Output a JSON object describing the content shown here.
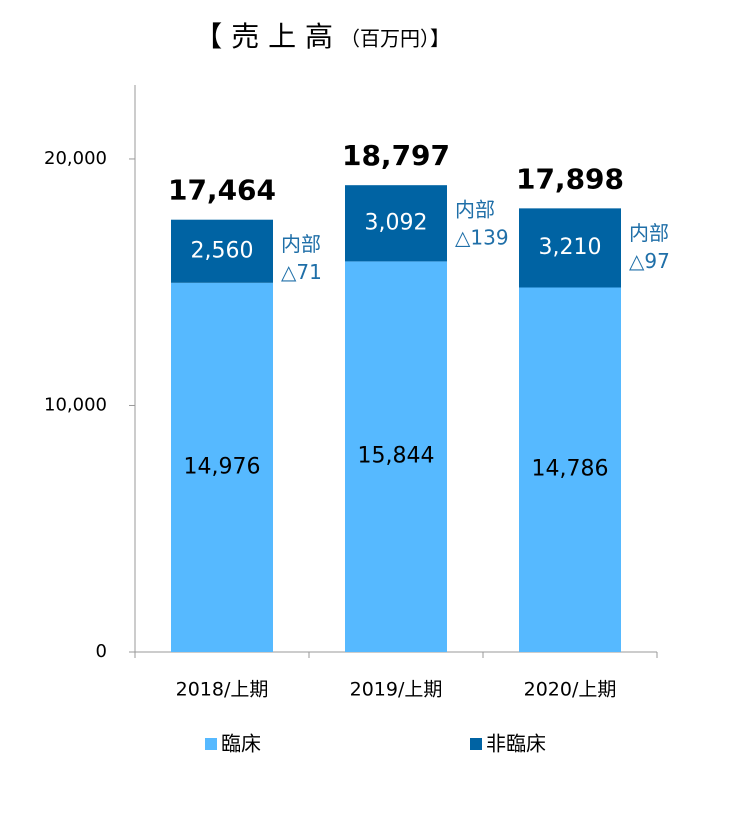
{
  "chart_data": {
    "type": "stacked_bar",
    "title": "【 売 上 高",
    "subtitle": "（百万円）】",
    "categories": [
      "2018/上期",
      "2019/上期",
      "2020/上期"
    ],
    "series": [
      {
        "name": "臨床",
        "color": "#56b9ff",
        "values": [
          14976,
          15844,
          14786
        ],
        "value_labels": [
          "14,976",
          "15,844",
          "14,786"
        ]
      },
      {
        "name": "非臨床",
        "color": "#0063a3",
        "values": [
          2560,
          3092,
          3210
        ],
        "value_labels": [
          "2,560",
          "3,092",
          "3,210"
        ]
      }
    ],
    "totals": [
      17464,
      18797,
      17898
    ],
    "total_labels": [
      "17,464",
      "18,797",
      "17,898"
    ],
    "annotations": [
      [
        "内部",
        "△71"
      ],
      [
        "内部",
        "△139"
      ],
      [
        "内部",
        "△97"
      ]
    ],
    "ylim": [
      0,
      23000
    ],
    "yticks": [
      0,
      {
        "value": 10000,
        "label": "10,000"
      },
      {
        "value": 20000,
        "label": "20,000"
      }
    ],
    "grid": false,
    "legend": "bottom"
  }
}
